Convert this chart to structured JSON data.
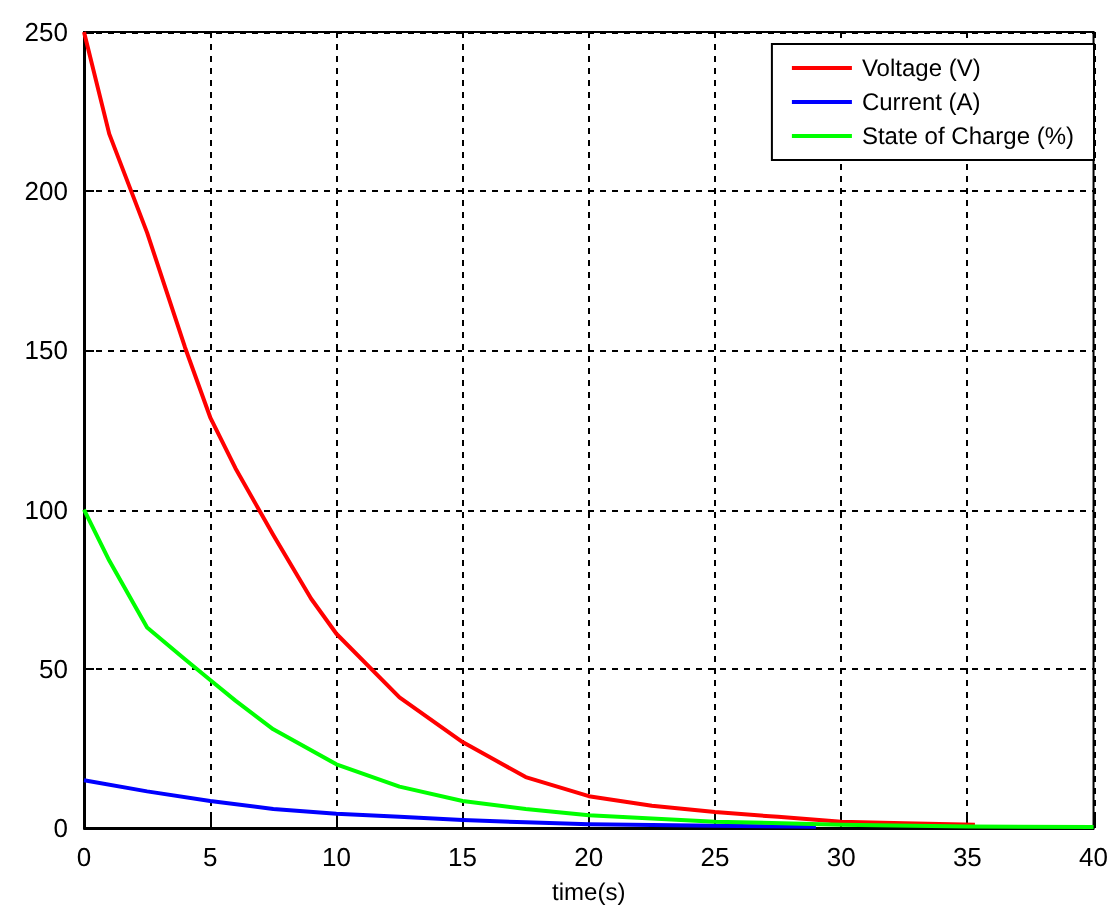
{
  "chart_data": {
    "type": "line",
    "xlabel": "time(s)",
    "xlim": [
      0,
      40
    ],
    "xticks": [
      0,
      5,
      10,
      15,
      20,
      25,
      30,
      35,
      40
    ],
    "ylim": [
      0,
      250
    ],
    "yticks": [
      0,
      50,
      100,
      150,
      200,
      250
    ],
    "grid": true,
    "legend": "top right",
    "marker": "none",
    "line_style": "solid",
    "series": [
      {
        "name": "Voltage (V)",
        "color": "#ff0000",
        "x": [
          0,
          1,
          2.5,
          4,
          5,
          6,
          7.5,
          9,
          10,
          12.5,
          15,
          17.5,
          20,
          22.5,
          25,
          27.5,
          30,
          32.5,
          35.3
        ],
        "values": [
          250,
          218,
          187,
          151,
          129,
          113,
          92,
          72,
          61,
          41,
          27,
          16,
          10,
          7,
          5,
          3.5,
          2,
          1.5,
          1
        ]
      },
      {
        "name": "Current (A)",
        "color": "#0000ff",
        "x": [
          0,
          2.5,
          5,
          7.5,
          10,
          12.5,
          15,
          17.5,
          20,
          25,
          29
        ],
        "values": [
          15,
          11.5,
          8.5,
          6,
          4.5,
          3.5,
          2.5,
          1.8,
          1.2,
          0.7,
          0.4
        ]
      },
      {
        "name": "State of Charge (%)",
        "color": "#00ff00",
        "x": [
          0,
          1,
          2.5,
          4,
          5,
          6,
          7.5,
          10,
          12.5,
          15,
          17.5,
          20,
          25,
          30,
          35,
          40
        ],
        "values": [
          100,
          84,
          63,
          53,
          46.5,
          40,
          31,
          20,
          13,
          8.5,
          6,
          4,
          2,
          1,
          0.5,
          0.3
        ]
      }
    ]
  }
}
